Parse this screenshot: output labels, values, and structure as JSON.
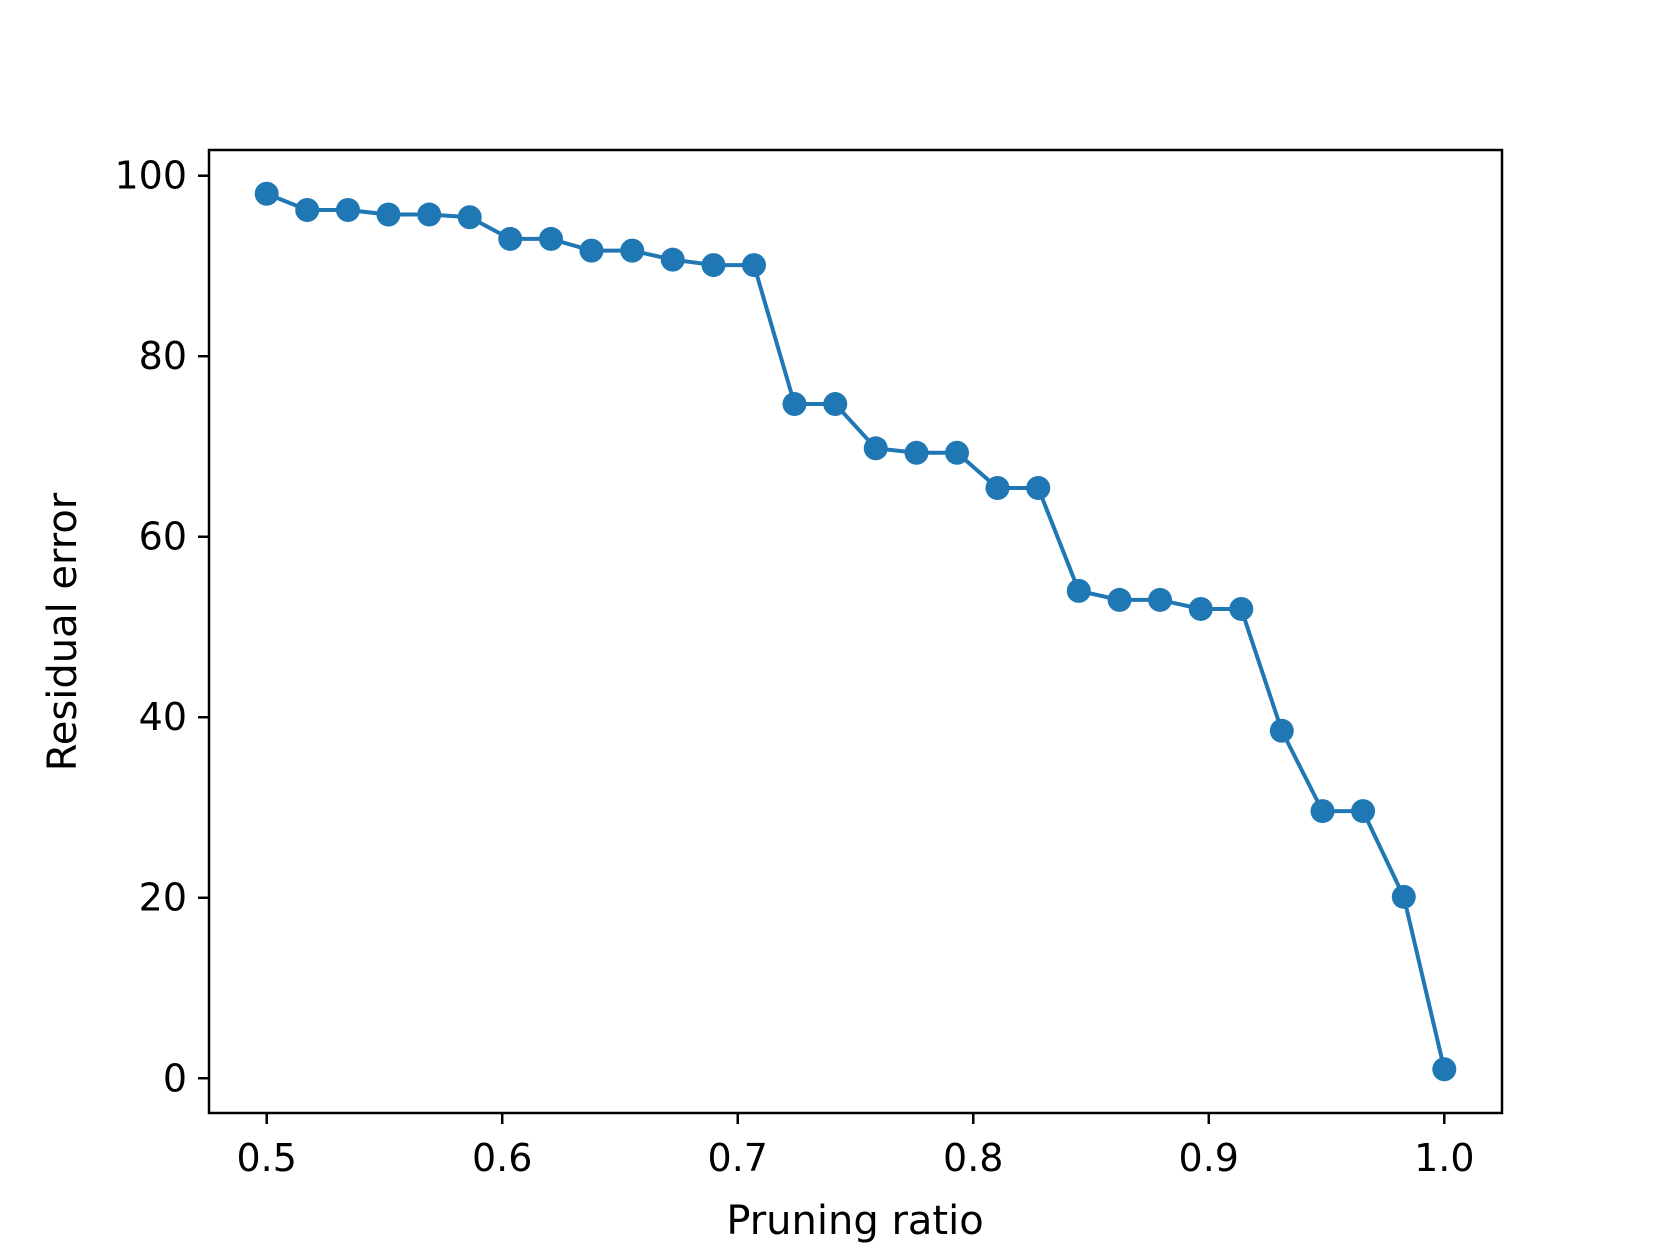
{
  "chart_data": {
    "type": "line",
    "title": "",
    "xlabel": "Pruning ratio",
    "ylabel": "Residual error",
    "xlim": [
      0.4755,
      1.0245
    ],
    "ylim": [
      -3.85,
      102.85
    ],
    "xticks": [
      0.5,
      0.6,
      0.7,
      0.8,
      0.9,
      1.0
    ],
    "xtick_labels": [
      "0.5",
      "0.6",
      "0.7",
      "0.8",
      "0.9",
      "1.0"
    ],
    "yticks": [
      0,
      20,
      40,
      60,
      80,
      100
    ],
    "ytick_labels": [
      "0",
      "20",
      "40",
      "60",
      "80",
      "100"
    ],
    "grid": false,
    "marker": "circle",
    "color": "#1f77b4",
    "series": [
      {
        "x": [
          0.5,
          0.5172,
          0.5345,
          0.5517,
          0.569,
          0.5862,
          0.6034,
          0.6207,
          0.6379,
          0.6552,
          0.6724,
          0.6897,
          0.7069,
          0.7241,
          0.7414,
          0.7586,
          0.7759,
          0.7931,
          0.8103,
          0.8276,
          0.8448,
          0.8621,
          0.8793,
          0.8966,
          0.9138,
          0.931,
          0.9483,
          0.9655,
          0.9828,
          1.0
        ],
        "values": [
          98.0,
          96.2,
          96.2,
          95.7,
          95.7,
          95.4,
          93.0,
          93.0,
          91.7,
          91.7,
          90.7,
          90.1,
          90.1,
          74.7,
          74.7,
          69.8,
          69.3,
          69.3,
          65.4,
          65.4,
          54.0,
          53.0,
          53.0,
          52.0,
          52.0,
          38.5,
          29.6,
          29.6,
          20.1,
          1.0
        ]
      }
    ]
  }
}
